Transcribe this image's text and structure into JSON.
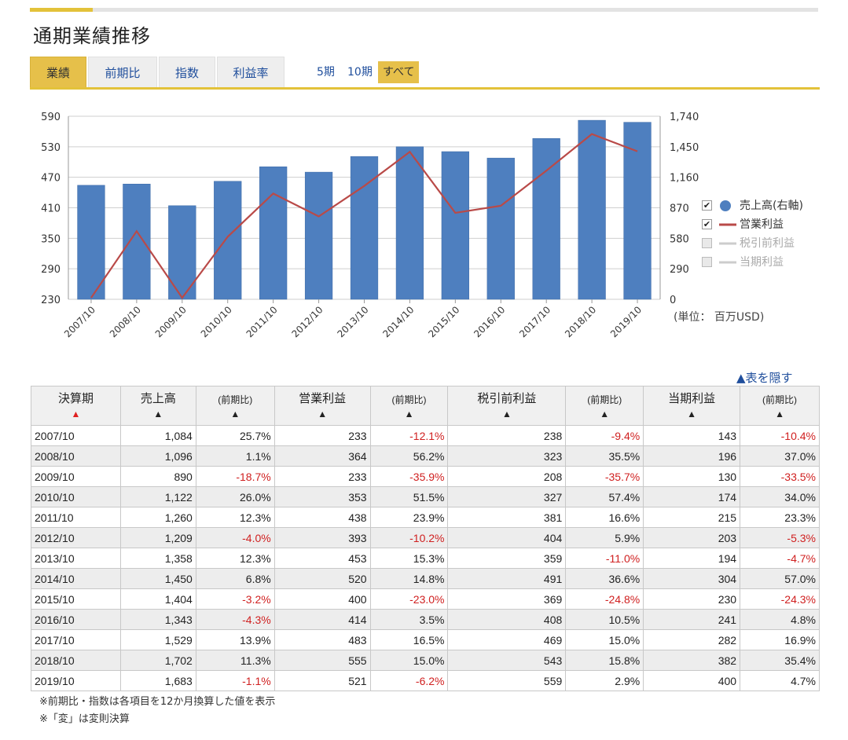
{
  "page": {
    "title": "通期業績推移",
    "tabs": [
      "業績",
      "前期比",
      "指数",
      "利益率"
    ],
    "active_tab": 0,
    "periods": [
      "5期",
      "10期",
      "すべて"
    ],
    "active_period": 2,
    "unit": "(単位： 百万USD)",
    "hide_table": "▲表を隠す",
    "notes": [
      "※前期比・指数は各項目を12か月換算した値を表示",
      "※「変」は変則決算"
    ]
  },
  "legend": [
    {
      "label": "売上高(右軸)",
      "checked": true,
      "color": "#4e7fbf",
      "marker": "circle"
    },
    {
      "label": "営業利益",
      "checked": true,
      "color": "#b94a48",
      "marker": "line"
    },
    {
      "label": "税引前利益",
      "checked": false,
      "color": "#cccccc",
      "marker": "line"
    },
    {
      "label": "当期利益",
      "checked": false,
      "color": "#cccccc",
      "marker": "line"
    }
  ],
  "chart_data": {
    "type": "bar",
    "categories": [
      "2007/10",
      "2008/10",
      "2009/10",
      "2010/10",
      "2011/10",
      "2012/10",
      "2013/10",
      "2014/10",
      "2015/10",
      "2016/10",
      "2017/10",
      "2018/10",
      "2019/10"
    ],
    "series": [
      {
        "name": "売上高(右軸)",
        "type": "bar",
        "axis": "right",
        "color": "#4e7fbf",
        "values": [
          1084,
          1096,
          890,
          1122,
          1260,
          1209,
          1358,
          1450,
          1404,
          1343,
          1529,
          1702,
          1683
        ]
      },
      {
        "name": "営業利益",
        "type": "line",
        "axis": "left",
        "color": "#b94a48",
        "values": [
          233,
          364,
          233,
          353,
          438,
          393,
          453,
          520,
          400,
          414,
          483,
          555,
          521
        ]
      }
    ],
    "left_axis": {
      "ticks": [
        "590",
        "530",
        "470",
        "410",
        "350",
        "290",
        "230"
      ],
      "min": 230,
      "max": 590
    },
    "right_axis": {
      "ticks": [
        "1,740",
        "1,450",
        "1,160",
        "870",
        "580",
        "290",
        "0"
      ],
      "min": 0,
      "max": 1740
    },
    "grid": true,
    "legend_position": "right"
  },
  "table": {
    "headers": [
      {
        "label": "決算期",
        "arrow": "▲",
        "sorted": true
      },
      {
        "label": "売上高",
        "arrow": "▲",
        "sorted": false
      },
      {
        "label": "(前期比)",
        "arrow": "▲",
        "sorted": false,
        "small": true
      },
      {
        "label": "営業利益",
        "arrow": "▲",
        "sorted": false
      },
      {
        "label": "(前期比)",
        "arrow": "▲",
        "sorted": false,
        "small": true
      },
      {
        "label": "税引前利益",
        "arrow": "▲",
        "sorted": false
      },
      {
        "label": "(前期比)",
        "arrow": "▲",
        "sorted": false,
        "small": true
      },
      {
        "label": "当期利益",
        "arrow": "▲",
        "sorted": false
      },
      {
        "label": "(前期比)",
        "arrow": "▲",
        "sorted": false,
        "small": true
      }
    ],
    "rows": [
      [
        "2007/10",
        "1,084",
        "25.7%",
        "233",
        "-12.1%",
        "238",
        "-9.4%",
        "143",
        "-10.4%"
      ],
      [
        "2008/10",
        "1,096",
        "1.1%",
        "364",
        "56.2%",
        "323",
        "35.5%",
        "196",
        "37.0%"
      ],
      [
        "2009/10",
        "890",
        "-18.7%",
        "233",
        "-35.9%",
        "208",
        "-35.7%",
        "130",
        "-33.5%"
      ],
      [
        "2010/10",
        "1,122",
        "26.0%",
        "353",
        "51.5%",
        "327",
        "57.4%",
        "174",
        "34.0%"
      ],
      [
        "2011/10",
        "1,260",
        "12.3%",
        "438",
        "23.9%",
        "381",
        "16.6%",
        "215",
        "23.3%"
      ],
      [
        "2012/10",
        "1,209",
        "-4.0%",
        "393",
        "-10.2%",
        "404",
        "5.9%",
        "203",
        "-5.3%"
      ],
      [
        "2013/10",
        "1,358",
        "12.3%",
        "453",
        "15.3%",
        "359",
        "-11.0%",
        "194",
        "-4.7%"
      ],
      [
        "2014/10",
        "1,450",
        "6.8%",
        "520",
        "14.8%",
        "491",
        "36.6%",
        "304",
        "57.0%"
      ],
      [
        "2015/10",
        "1,404",
        "-3.2%",
        "400",
        "-23.0%",
        "369",
        "-24.8%",
        "230",
        "-24.3%"
      ],
      [
        "2016/10",
        "1,343",
        "-4.3%",
        "414",
        "3.5%",
        "408",
        "10.5%",
        "241",
        "4.8%"
      ],
      [
        "2017/10",
        "1,529",
        "13.9%",
        "483",
        "16.5%",
        "469",
        "15.0%",
        "282",
        "16.9%"
      ],
      [
        "2018/10",
        "1,702",
        "11.3%",
        "555",
        "15.0%",
        "543",
        "15.8%",
        "382",
        "35.4%"
      ],
      [
        "2019/10",
        "1,683",
        "-1.1%",
        "521",
        "-6.2%",
        "559",
        "2.9%",
        "400",
        "4.7%"
      ]
    ]
  }
}
